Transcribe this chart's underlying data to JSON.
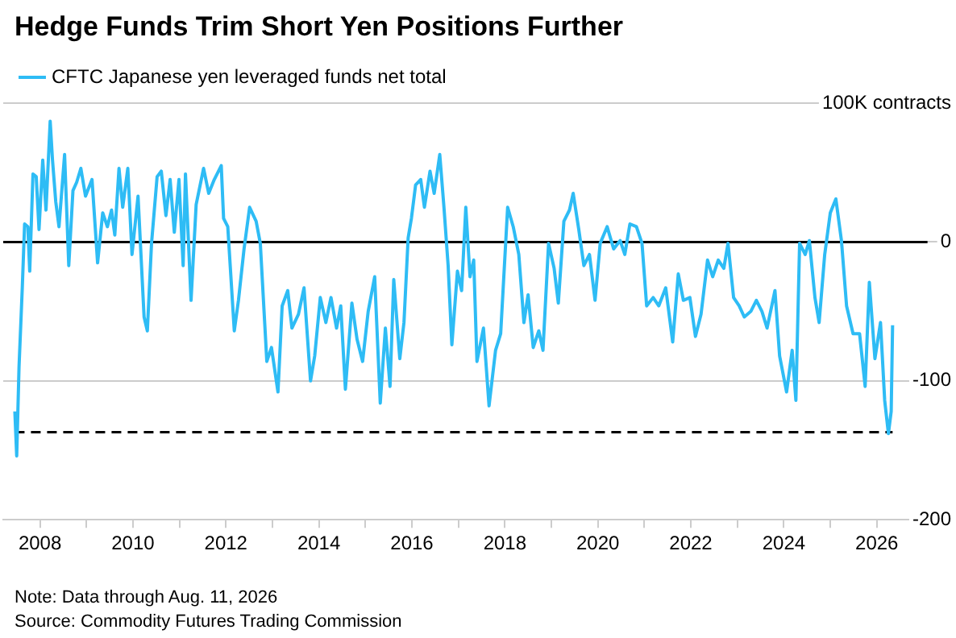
{
  "chart_data": {
    "type": "line",
    "title": "Hedge Funds Trim Short Yen Positions Further",
    "annotations": [
      "Note: Data through Aug. 11, 2026",
      "Source: Commodity Futures Trading Commission"
    ],
    "series": [
      {
        "name": "CFTC Japanese yen leveraged funds net total",
        "color": "#2ebcf5",
        "x": [
          2007.46,
          2007.5,
          2007.55,
          2007.62,
          2007.67,
          2007.74,
          2007.78,
          2007.85,
          2007.92,
          2007.98,
          2008.06,
          2008.13,
          2008.22,
          2008.27,
          2008.34,
          2008.41,
          2008.53,
          2008.62,
          2008.71,
          2008.79,
          2008.88,
          2008.98,
          2009.12,
          2009.24,
          2009.35,
          2009.45,
          2009.54,
          2009.61,
          2009.7,
          2009.78,
          2009.89,
          2009.98,
          2010.11,
          2010.24,
          2010.31,
          2010.4,
          2010.52,
          2010.61,
          2010.71,
          2010.8,
          2010.89,
          2010.99,
          2011.08,
          2011.13,
          2011.25,
          2011.36,
          2011.52,
          2011.63,
          2011.75,
          2011.9,
          2011.95,
          2012.04,
          2012.18,
          2012.27,
          2012.39,
          2012.51,
          2012.65,
          2012.74,
          2012.88,
          2012.98,
          2013.12,
          2013.21,
          2013.33,
          2013.42,
          2013.56,
          2013.68,
          2013.82,
          2013.91,
          2014.03,
          2014.15,
          2014.26,
          2014.38,
          2014.47,
          2014.57,
          2014.71,
          2014.82,
          2014.94,
          2015.06,
          2015.2,
          2015.32,
          2015.43,
          2015.53,
          2015.61,
          2015.74,
          2015.83,
          2015.92,
          2015.99,
          2016.08,
          2016.19,
          2016.27,
          2016.39,
          2016.48,
          2016.6,
          2016.69,
          2016.78,
          2016.86,
          2016.98,
          2017.07,
          2017.16,
          2017.25,
          2017.33,
          2017.4,
          2017.54,
          2017.66,
          2017.8,
          2017.91,
          2018.06,
          2018.18,
          2018.3,
          2018.41,
          2018.5,
          2018.61,
          2018.73,
          2018.82,
          2018.94,
          2019.06,
          2019.15,
          2019.27,
          2019.39,
          2019.47,
          2019.59,
          2019.7,
          2019.82,
          2019.94,
          2020.05,
          2020.2,
          2020.34,
          2020.48,
          2020.58,
          2020.69,
          2020.83,
          2020.95,
          2021.05,
          2021.19,
          2021.31,
          2021.46,
          2021.61,
          2021.73,
          2021.84,
          2021.98,
          2022.1,
          2022.22,
          2022.36,
          2022.47,
          2022.59,
          2022.71,
          2022.8,
          2022.92,
          2023.04,
          2023.15,
          2023.29,
          2023.41,
          2023.53,
          2023.64,
          2023.81,
          2023.91,
          2024.06,
          2024.18,
          2024.26,
          2024.34,
          2024.46,
          2024.55,
          2024.67,
          2024.76,
          2024.88,
          2025,
          2025.12,
          2025.24,
          2025.35,
          2025.49,
          2025.63,
          2025.75,
          2025.84,
          2025.96,
          2026.08,
          2026.17,
          2026.25,
          2026.31,
          2026.34
        ],
        "values": [
          -122,
          -154,
          -90,
          -33,
          13,
          11,
          -21,
          49,
          47,
          9,
          59,
          23,
          87,
          59,
          29,
          11,
          63,
          -17,
          37,
          43,
          53,
          33,
          45,
          -15,
          21,
          11,
          23,
          5,
          53,
          25,
          53,
          -9,
          33,
          -54,
          -64,
          -1,
          47,
          51,
          19,
          45,
          7,
          45,
          -17,
          49,
          -42,
          27,
          53,
          35,
          45,
          55,
          17,
          11,
          -64,
          -42,
          -5,
          25,
          15,
          -1,
          -86,
          -76,
          -108,
          -46,
          -35,
          -62,
          -52,
          -33,
          -100,
          -82,
          -40,
          -58,
          -40,
          -62,
          -46,
          -106,
          -44,
          -70,
          -86,
          -50,
          -25,
          -116,
          -62,
          -104,
          -27,
          -84,
          -58,
          3,
          17,
          41,
          45,
          25,
          51,
          35,
          63,
          25,
          -17,
          -74,
          -21,
          -35,
          25,
          -25,
          -13,
          -86,
          -62,
          -118,
          -78,
          -66,
          25,
          11,
          -9,
          -58,
          -38,
          -76,
          -64,
          -78,
          -1,
          -19,
          -44,
          15,
          23,
          35,
          9,
          -17,
          -9,
          -42,
          -1,
          11,
          -5,
          1,
          -9,
          13,
          11,
          -1,
          -46,
          -40,
          -46,
          -33,
          -72,
          -23,
          -42,
          -40,
          -68,
          -52,
          -13,
          -25,
          -13,
          -19,
          -1,
          -40,
          -46,
          -54,
          -50,
          -42,
          -50,
          -62,
          -35,
          -82,
          -108,
          -78,
          -114,
          -1,
          -9,
          1,
          -40,
          -58,
          -9,
          21,
          31,
          1,
          -46,
          -66,
          -66,
          -104,
          -29,
          -84,
          -58,
          -114,
          -138,
          -122,
          -60
        ]
      }
    ],
    "xlim": [
      2007.21,
      2027.6
    ],
    "xticks": [
      2008,
      {
        "value": 2009,
        "label": null
      },
      2010,
      {
        "value": 2011,
        "label": null
      },
      2012,
      {
        "value": 2013,
        "label": null
      },
      2014,
      {
        "value": 2015,
        "label": null
      },
      2016,
      {
        "value": 2017,
        "label": null
      },
      2018,
      {
        "value": 2019,
        "label": null
      },
      2020,
      {
        "value": 2021,
        "label": null
      },
      2022,
      {
        "value": 2023,
        "label": null
      },
      2024,
      {
        "value": 2025,
        "label": null
      },
      2026,
      {
        "value": 2027,
        "label": null
      }
    ],
    "ylim": [
      -200,
      100
    ],
    "yticks": [
      {
        "value": 100,
        "label": "100K contracts"
      },
      0,
      -100,
      -200
    ],
    "ref_lines": [
      {
        "axis": "y",
        "value": 0,
        "color": "#000000",
        "line_style": "solid"
      },
      {
        "axis": "y",
        "value": -137,
        "color": "#000000",
        "line_style": "dashed"
      }
    ],
    "grid": "y",
    "legend": "top left",
    "marker": "none",
    "line_style": "solid"
  }
}
